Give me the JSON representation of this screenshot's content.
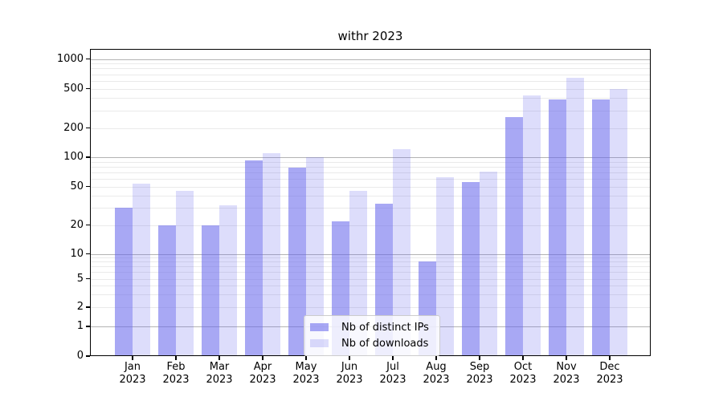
{
  "chart_data": {
    "type": "bar",
    "title": "withr 2023",
    "categories": [
      {
        "month": "Jan",
        "year": "2023"
      },
      {
        "month": "Feb",
        "year": "2023"
      },
      {
        "month": "Mar",
        "year": "2023"
      },
      {
        "month": "Apr",
        "year": "2023"
      },
      {
        "month": "May",
        "year": "2023"
      },
      {
        "month": "Jun",
        "year": "2023"
      },
      {
        "month": "Jul",
        "year": "2023"
      },
      {
        "month": "Aug",
        "year": "2023"
      },
      {
        "month": "Sep",
        "year": "2023"
      },
      {
        "month": "Oct",
        "year": "2023"
      },
      {
        "month": "Nov",
        "year": "2023"
      },
      {
        "month": "Dec",
        "year": "2023"
      }
    ],
    "series": [
      {
        "name": "Nb of distinct IPs",
        "color": "rgba(100,100,235,0.56)",
        "values": [
          30,
          20,
          20,
          93,
          78,
          22,
          33,
          8,
          55,
          257,
          385,
          390
        ]
      },
      {
        "name": "Nb of downloads",
        "color": "rgba(100,100,235,0.22)",
        "values": [
          53,
          45,
          32,
          110,
          100,
          45,
          120,
          62,
          71,
          430,
          645,
          500
        ]
      }
    ],
    "xlabel": "",
    "ylabel": "",
    "yscale": "symlog",
    "yticks": [
      0,
      1,
      2,
      5,
      10,
      20,
      50,
      100,
      200,
      500,
      1000
    ],
    "ylim": [
      0,
      1400
    ],
    "grid": "horizontal major and minor",
    "legend_position": "inside bottom-center"
  },
  "colors": {
    "bar_base": "#6464eb",
    "major_grid": "#b3b3b3",
    "minor_grid": "#eaeaea",
    "spine": "#000000",
    "legend_border": "#cccccc",
    "legend_bg": "rgba(255,255,255,0.8)",
    "text": "#000000"
  }
}
